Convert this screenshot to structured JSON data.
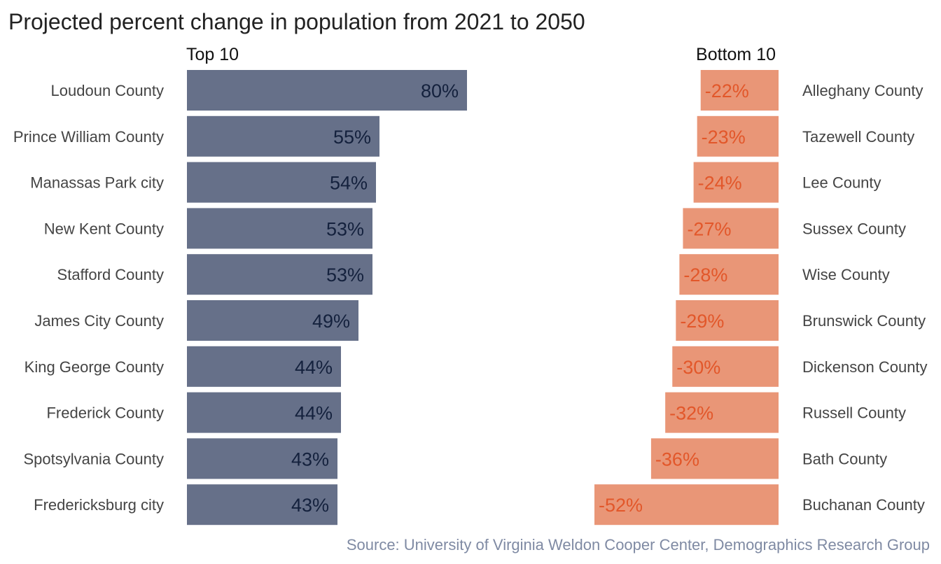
{
  "chart_data": {
    "type": "bar",
    "title": "Projected percent change in population from 2021 to 2050",
    "source": "Source: University of Virginia Weldon Cooper Center, Demographics Research Group",
    "panels": [
      {
        "name": "Top 10",
        "color": "#667089",
        "label_color": "#14213d",
        "categories": [
          "Loudoun County",
          "Prince William County",
          "Manassas Park city",
          "New Kent County",
          "Stafford County",
          "James City County",
          "King George County",
          "Frederick County",
          "Spotsylvania County",
          "Fredericksburg city"
        ],
        "values": [
          80,
          55,
          54,
          53,
          53,
          49,
          44,
          44,
          43,
          43
        ],
        "value_labels": [
          "80%",
          "55%",
          "54%",
          "53%",
          "53%",
          "49%",
          "44%",
          "44%",
          "43%",
          "43%"
        ]
      },
      {
        "name": "Bottom 10",
        "color": "#e99677",
        "label_color": "#e2572a",
        "categories": [
          "Alleghany County",
          "Tazewell County",
          "Lee County",
          "Sussex County",
          "Wise County",
          "Brunswick County",
          "Dickenson County",
          "Russell County",
          "Bath County",
          "Buchanan County"
        ],
        "values": [
          -22,
          -23,
          -24,
          -27,
          -28,
          -29,
          -30,
          -32,
          -36,
          -52
        ],
        "value_labels": [
          "-22%",
          "-23%",
          "-24%",
          "-27%",
          "-28%",
          "-29%",
          "-30%",
          "-32%",
          "-36%",
          "-52%"
        ]
      }
    ],
    "grid": false,
    "legend": "none"
  }
}
